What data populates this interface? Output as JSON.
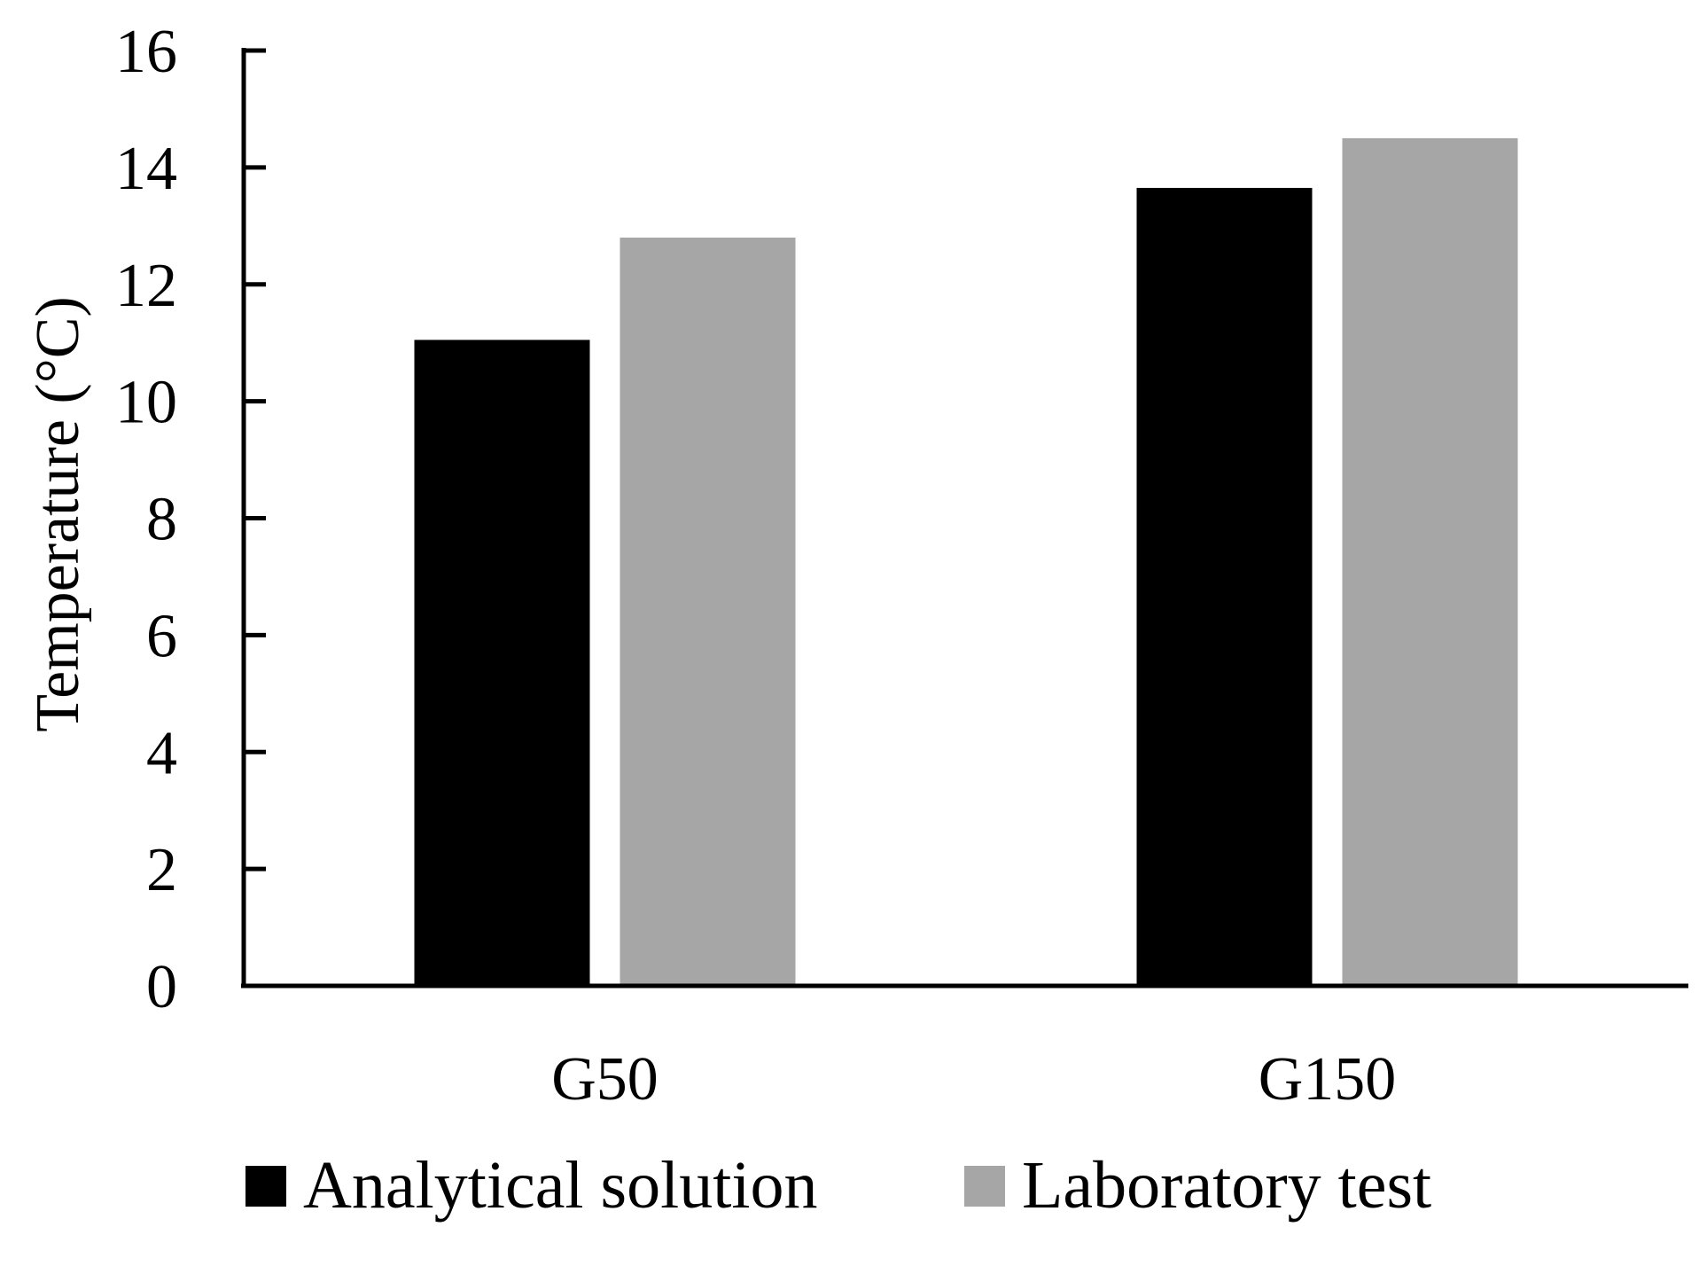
{
  "chart_data": {
    "type": "bar",
    "categories": [
      "G50",
      "G150"
    ],
    "series": [
      {
        "name": "Analytical solution",
        "values": [
          11.05,
          13.65
        ],
        "color": "#000000"
      },
      {
        "name": "Laboratory test",
        "values": [
          12.8,
          14.5
        ],
        "color": "#a6a6a6"
      }
    ],
    "xlabel": "",
    "ylabel": "Temperature (°C)",
    "ylim": [
      0,
      16
    ],
    "yticks": [
      "0",
      "2",
      "4",
      "6",
      "8",
      "10",
      "12",
      "14",
      "16"
    ],
    "grid": false,
    "legend_position": "bottom"
  }
}
